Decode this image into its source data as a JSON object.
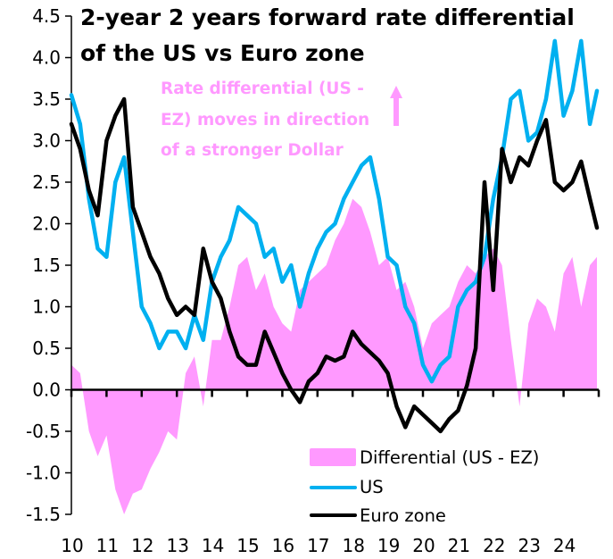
{
  "chart_data": {
    "type": "line",
    "title": [
      "2-year 2 years forward rate differential",
      "of the US vs Euro zone"
    ],
    "annotation": [
      "Rate differential (US -",
      "EZ) moves in direction",
      "of a stronger Dollar"
    ],
    "annotation_arrow": "up-arrow",
    "xlabel": "",
    "ylabel": "",
    "x_range": [
      2010,
      2025
    ],
    "x_ticks": [
      "10",
      "11",
      "12",
      "13",
      "14",
      "15",
      "16",
      "17",
      "18",
      "19",
      "20",
      "21",
      "22",
      "23",
      "24"
    ],
    "ylim": [
      -1.5,
      4.5
    ],
    "y_ticks": [
      "4.5",
      "4.0",
      "3.5",
      "3.0",
      "2.5",
      "2.0",
      "1.5",
      "1.0",
      "0.5",
      "0.0",
      "-0.5",
      "-1.0",
      "-1.5"
    ],
    "y_tick_values": [
      4.5,
      4.0,
      3.5,
      3.0,
      2.5,
      2.0,
      1.5,
      1.0,
      0.5,
      0.0,
      -0.5,
      -1.0,
      -1.5
    ],
    "grid": false,
    "legend_position": "bottom-right",
    "colors": {
      "differential": "#ff99ff",
      "us": "#00b0f0",
      "ez": "#000000",
      "annotation": "#ff99ff"
    },
    "x": [
      2010.0,
      2010.25,
      2010.5,
      2010.75,
      2011.0,
      2011.25,
      2011.5,
      2011.75,
      2012.0,
      2012.25,
      2012.5,
      2012.75,
      2013.0,
      2013.25,
      2013.5,
      2013.75,
      2014.0,
      2014.25,
      2014.5,
      2014.75,
      2015.0,
      2015.25,
      2015.5,
      2015.75,
      2016.0,
      2016.25,
      2016.5,
      2016.75,
      2017.0,
      2017.25,
      2017.5,
      2017.75,
      2018.0,
      2018.25,
      2018.5,
      2018.75,
      2019.0,
      2019.25,
      2019.5,
      2019.75,
      2020.0,
      2020.25,
      2020.5,
      2020.75,
      2021.0,
      2021.25,
      2021.5,
      2021.75,
      2022.0,
      2022.25,
      2022.5,
      2022.75,
      2023.0,
      2023.25,
      2023.5,
      2023.75,
      2024.0,
      2024.25,
      2024.5,
      2024.75,
      2024.95
    ],
    "series": [
      {
        "name": "Differential (US - EZ)",
        "type": "area",
        "values": [
          0.3,
          0.2,
          -0.5,
          -0.8,
          -0.55,
          -1.2,
          -1.5,
          -1.25,
          -1.2,
          -0.95,
          -0.75,
          -0.5,
          -0.6,
          0.2,
          0.4,
          -0.2,
          0.6,
          0.6,
          1.0,
          1.5,
          1.6,
          1.2,
          1.4,
          1.0,
          0.8,
          0.7,
          1.2,
          1.3,
          1.4,
          1.5,
          1.8,
          2.0,
          2.3,
          2.2,
          1.9,
          1.5,
          1.6,
          1.2,
          1.3,
          1.0,
          0.5,
          0.8,
          0.9,
          1.0,
          1.3,
          1.5,
          1.4,
          1.6,
          1.7,
          1.5,
          0.6,
          -0.2,
          0.8,
          1.1,
          1.0,
          0.7,
          1.4,
          1.6,
          1.0,
          1.5,
          1.6
        ]
      },
      {
        "name": "US",
        "type": "line",
        "values": [
          3.55,
          3.2,
          2.3,
          1.7,
          1.6,
          2.5,
          2.8,
          1.9,
          1.0,
          0.8,
          0.5,
          0.7,
          0.7,
          0.5,
          0.9,
          0.6,
          1.3,
          1.6,
          1.8,
          2.2,
          2.1,
          2.0,
          1.6,
          1.7,
          1.3,
          1.5,
          1.0,
          1.4,
          1.7,
          1.9,
          2.0,
          2.3,
          2.5,
          2.7,
          2.8,
          2.3,
          1.6,
          1.5,
          1.0,
          0.8,
          0.3,
          0.1,
          0.3,
          0.4,
          1.0,
          1.2,
          1.3,
          1.6,
          2.3,
          2.8,
          3.5,
          3.6,
          3.0,
          3.1,
          3.5,
          4.2,
          3.3,
          3.6,
          4.2,
          3.2,
          3.6
        ]
      },
      {
        "name": "Euro zone",
        "type": "line",
        "values": [
          3.2,
          2.9,
          2.4,
          2.1,
          3.0,
          3.3,
          3.5,
          2.2,
          1.9,
          1.6,
          1.4,
          1.1,
          0.9,
          1.0,
          0.9,
          1.7,
          1.3,
          1.1,
          0.7,
          0.4,
          0.3,
          0.3,
          0.7,
          0.45,
          0.2,
          0.0,
          -0.15,
          0.1,
          0.2,
          0.4,
          0.35,
          0.4,
          0.7,
          0.55,
          0.45,
          0.35,
          0.2,
          -0.2,
          -0.45,
          -0.2,
          -0.3,
          -0.4,
          -0.5,
          -0.35,
          -0.25,
          0.05,
          0.5,
          2.5,
          1.2,
          2.9,
          2.5,
          2.8,
          2.7,
          3.0,
          3.25,
          2.5,
          2.4,
          2.5,
          2.75,
          2.3,
          1.95
        ]
      }
    ],
    "legend": [
      {
        "label": "Differential (US - EZ)",
        "marker": "area-swatch"
      },
      {
        "label": "US",
        "marker": "line"
      },
      {
        "label": "Euro zone",
        "marker": "line"
      }
    ]
  }
}
